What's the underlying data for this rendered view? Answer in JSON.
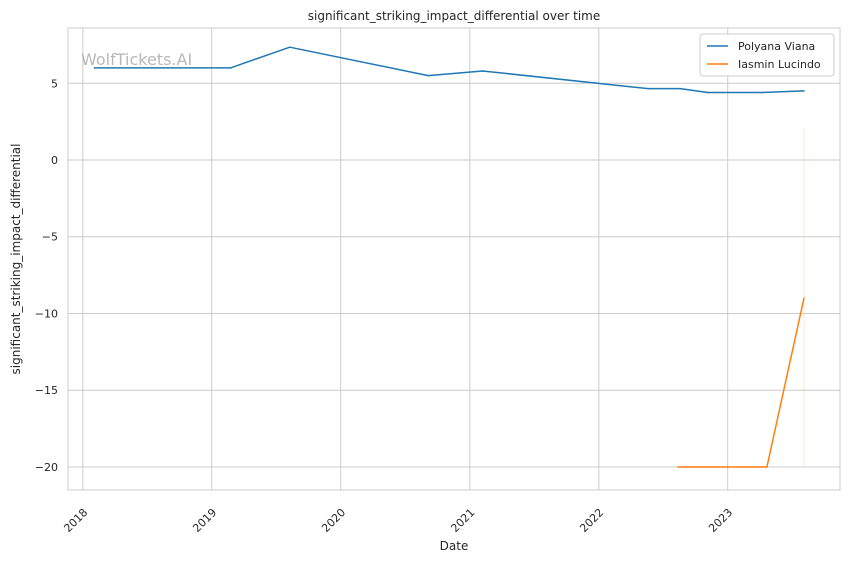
{
  "chart_data": {
    "type": "line",
    "title": "significant_striking_impact_differential over time",
    "xlabel": "Date",
    "ylabel": "significant_striking_impact_differential",
    "x_ticks": [
      "2018",
      "2019",
      "2020",
      "2021",
      "2022",
      "2023"
    ],
    "y_ticks": [
      5,
      0,
      -5,
      -10,
      -15,
      -20
    ],
    "y_tick_labels": [
      "5",
      "0",
      "−5",
      "−10",
      "−15",
      "−20"
    ],
    "xlim": [
      "2017-11-20",
      "2023-11-15"
    ],
    "ylim": [
      -21.5,
      8.6
    ],
    "grid": true,
    "legend_position": "top-right",
    "watermark": "WolfTickets.AI",
    "series": [
      {
        "name": "Polyana Viana",
        "color": "#1f77b4",
        "points": [
          {
            "x": "2018-02-03",
            "y": 6.0
          },
          {
            "x": "2019-02-23",
            "y": 6.0
          },
          {
            "x": "2019-08-10",
            "y": 7.35
          },
          {
            "x": "2020-09-05",
            "y": 5.5
          },
          {
            "x": "2021-02-06",
            "y": 5.8
          },
          {
            "x": "2022-05-21",
            "y": 4.65
          },
          {
            "x": "2022-08-20",
            "y": 4.65
          },
          {
            "x": "2022-11-05",
            "y": 4.4
          },
          {
            "x": "2023-04-08",
            "y": 4.4
          },
          {
            "x": "2023-08-05",
            "y": 4.5
          }
        ]
      },
      {
        "name": "Iasmin Lucindo",
        "color": "#ff7f0e",
        "points": [
          {
            "x": "2022-08-13",
            "y": -20.0
          },
          {
            "x": "2023-04-22",
            "y": -20.0
          },
          {
            "x": "2023-08-05",
            "y": -9.0
          }
        ]
      }
    ],
    "reference_line": {
      "x": "2023-08-05",
      "y_from": -20.0,
      "y_to": 2.1,
      "color": "#ff7f0e"
    }
  }
}
